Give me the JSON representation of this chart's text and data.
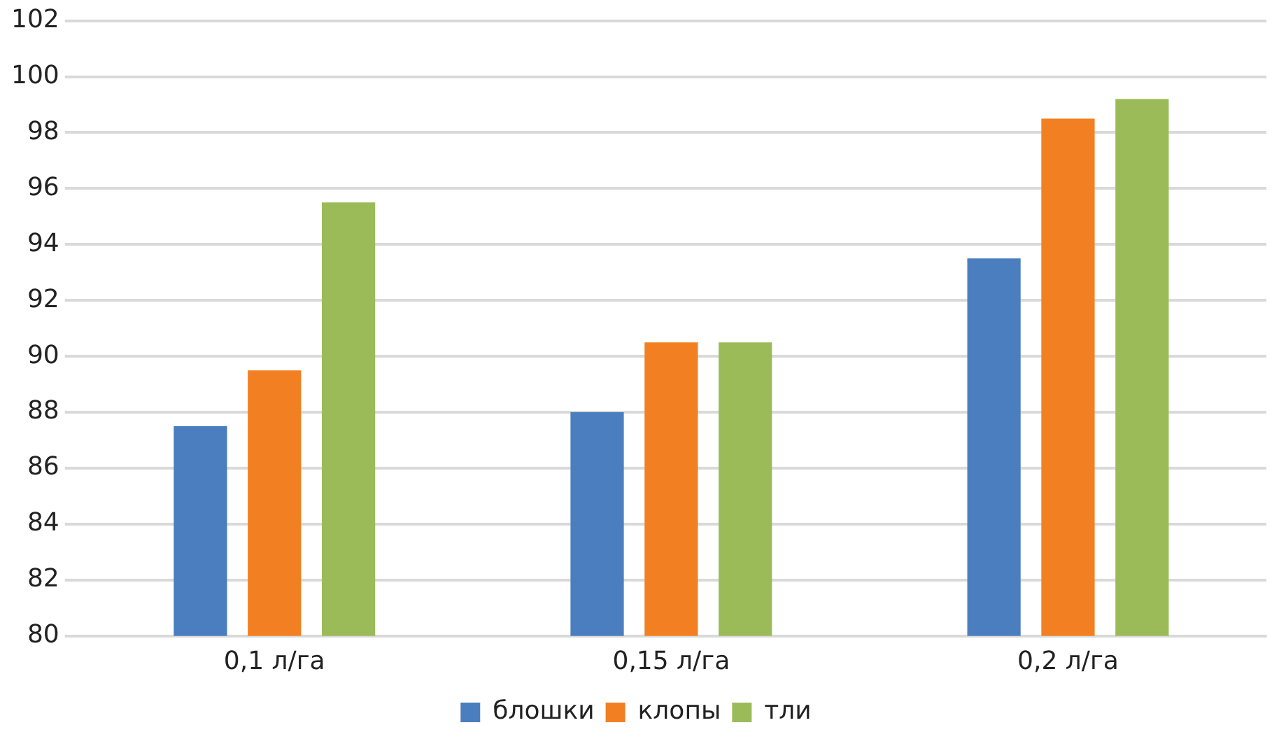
{
  "chart_data": {
    "type": "bar",
    "categories": [
      "0,1 л/га",
      "0,15 л/га",
      "0,2 л/га"
    ],
    "series": [
      {
        "name": "блошки",
        "color": "#4a7ebf",
        "values": [
          87.5,
          88,
          93.5
        ]
      },
      {
        "name": "клопы",
        "color": "#f28022",
        "values": [
          89.5,
          90.5,
          98.5
        ]
      },
      {
        "name": "тли",
        "color": "#9bbb59",
        "values": [
          95.5,
          90.5,
          99.2
        ]
      }
    ],
    "ylim": [
      80,
      102
    ],
    "yticks": [
      80,
      82,
      84,
      86,
      88,
      90,
      92,
      94,
      96,
      98,
      100,
      102
    ],
    "grid": "y",
    "legend": "bottom"
  }
}
